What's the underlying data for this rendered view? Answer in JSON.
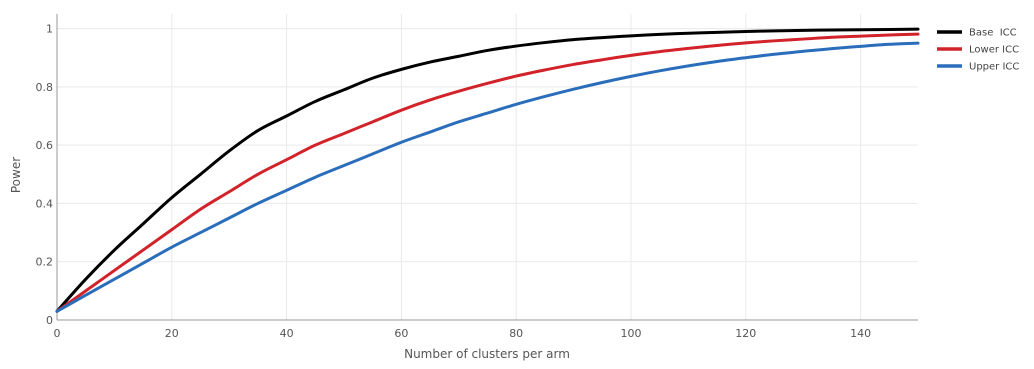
{
  "chart_data": {
    "type": "line",
    "title": "",
    "xlabel": "Number of clusters per arm",
    "ylabel": "Power",
    "xlim": [
      0,
      150
    ],
    "ylim": [
      0,
      1.05
    ],
    "x_ticks": [
      0,
      20,
      40,
      60,
      80,
      100,
      120,
      140
    ],
    "y_ticks": [
      0,
      0.2,
      0.4,
      0.6,
      0.8,
      1
    ],
    "y_tick_labels": [
      "0",
      "0.2",
      "0.4",
      "0.6",
      "0.8",
      "1"
    ],
    "grid": true,
    "legend_position": "right",
    "x": [
      0,
      5,
      10,
      15,
      20,
      25,
      30,
      35,
      40,
      45,
      50,
      55,
      60,
      65,
      70,
      75,
      80,
      85,
      90,
      95,
      100,
      105,
      110,
      115,
      120,
      125,
      130,
      135,
      140,
      145,
      150
    ],
    "series": [
      {
        "name": "Base  ICC",
        "color": "#000000",
        "values": [
          0.03,
          0.14,
          0.24,
          0.33,
          0.42,
          0.5,
          0.58,
          0.65,
          0.7,
          0.75,
          0.79,
          0.83,
          0.86,
          0.885,
          0.905,
          0.925,
          0.94,
          0.952,
          0.962,
          0.969,
          0.975,
          0.98,
          0.984,
          0.987,
          0.99,
          0.992,
          0.994,
          0.995,
          0.996,
          0.997,
          0.998
        ]
      },
      {
        "name": "Lower ICC",
        "color": "#d2232a",
        "values": [
          0.03,
          0.1,
          0.17,
          0.24,
          0.31,
          0.38,
          0.44,
          0.5,
          0.55,
          0.6,
          0.64,
          0.68,
          0.72,
          0.755,
          0.785,
          0.812,
          0.837,
          0.858,
          0.877,
          0.893,
          0.908,
          0.921,
          0.932,
          0.942,
          0.951,
          0.958,
          0.964,
          0.97,
          0.974,
          0.978,
          0.981
        ]
      },
      {
        "name": "Upper ICC",
        "color": "#2a6ebb",
        "values": [
          0.03,
          0.085,
          0.14,
          0.195,
          0.25,
          0.3,
          0.35,
          0.4,
          0.445,
          0.49,
          0.53,
          0.57,
          0.61,
          0.645,
          0.68,
          0.71,
          0.74,
          0.767,
          0.792,
          0.815,
          0.836,
          0.855,
          0.872,
          0.887,
          0.9,
          0.912,
          0.922,
          0.931,
          0.939,
          0.946,
          0.95
        ]
      }
    ]
  }
}
